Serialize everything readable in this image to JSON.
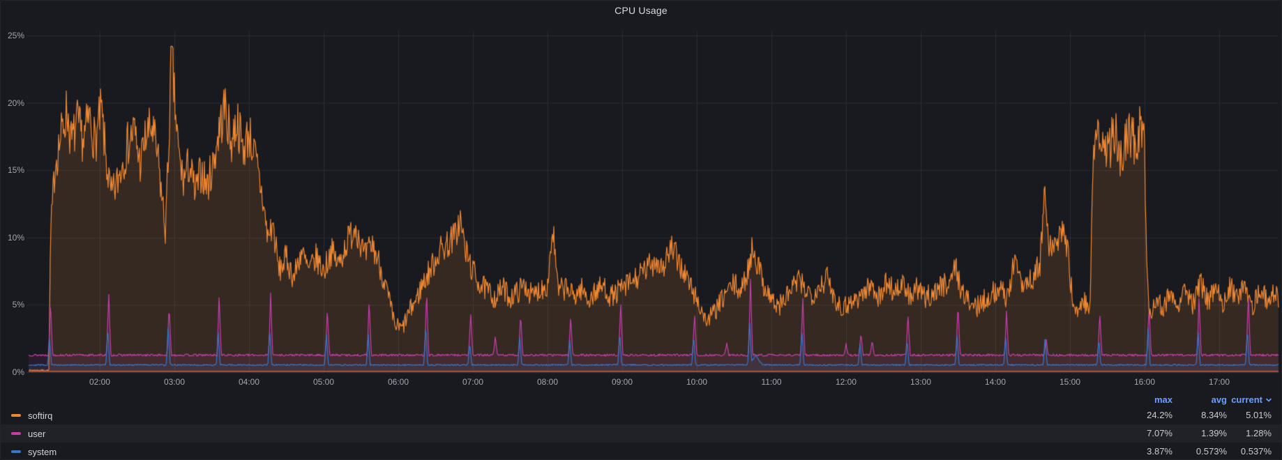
{
  "panel": {
    "title": "CPU Usage"
  },
  "colors": {
    "background": "#181A20",
    "grid": "#2C2E34",
    "tick_text": "#A2A6AE",
    "title_text": "#DADBDE",
    "legend_header": "#6E9FFF",
    "legend_text": "#D2D4D8",
    "legend_value_text": "#C9CBD2",
    "near_zero_line": "#C25E3A"
  },
  "chart_data": {
    "type": "line",
    "title": "CPU Usage",
    "grid": true,
    "x_axis": {
      "unit": "time_of_day",
      "tick_labels": [
        "02:00",
        "03:00",
        "04:00",
        "05:00",
        "06:00",
        "07:00",
        "08:00",
        "09:00",
        "10:00",
        "11:00",
        "12:00",
        "13:00",
        "14:00",
        "15:00",
        "16:00",
        "17:00"
      ],
      "tick_hours": [
        2,
        3,
        4,
        5,
        6,
        7,
        8,
        9,
        10,
        11,
        12,
        13,
        14,
        15,
        16,
        17
      ],
      "range_hours": [
        1.05,
        17.79
      ]
    },
    "y_axis": {
      "unit": "percent",
      "tick_labels": [
        "0%",
        "5%",
        "10%",
        "15%",
        "20%",
        "25%"
      ],
      "tick_values": [
        0,
        5,
        10,
        15,
        20,
        25
      ],
      "range": [
        0,
        25.6
      ]
    },
    "legend": {
      "position": "bottom-table",
      "columns": [
        "max",
        "avg",
        "current"
      ],
      "sort_column": "current",
      "sort_descending": true
    },
    "near_zero_line": {
      "value": 0.07,
      "color": "#C25E3A"
    },
    "series": [
      {
        "name": "softirq",
        "color": "#ED8733",
        "fill_opacity": 0.14,
        "stats": {
          "max": "24.2%",
          "avg": "8.34%",
          "current": "5.01%"
        },
        "noise_seed": 7,
        "max_value": 24.2,
        "envelope_points": [
          [
            1.05,
            0.15
          ],
          [
            1.32,
            0.15
          ],
          [
            1.34,
            9.8
          ],
          [
            1.4,
            15.5
          ],
          [
            1.48,
            17.5
          ],
          [
            1.56,
            19.5
          ],
          [
            1.62,
            17
          ],
          [
            1.7,
            18.5
          ],
          [
            1.78,
            17.2
          ],
          [
            1.86,
            19
          ],
          [
            1.94,
            17
          ],
          [
            2.02,
            19.5
          ],
          [
            2.08,
            16
          ],
          [
            2.15,
            13
          ],
          [
            2.22,
            13.8
          ],
          [
            2.3,
            15.5
          ],
          [
            2.38,
            17
          ],
          [
            2.46,
            18
          ],
          [
            2.54,
            15.5
          ],
          [
            2.62,
            17.5
          ],
          [
            2.7,
            18.2
          ],
          [
            2.78,
            15.8
          ],
          [
            2.88,
            10.5
          ],
          [
            2.92,
            16
          ],
          [
            2.96,
            24.2
          ],
          [
            3.0,
            20.3
          ],
          [
            3.06,
            16
          ],
          [
            3.12,
            14.2
          ],
          [
            3.2,
            15.5
          ],
          [
            3.28,
            13.2
          ],
          [
            3.36,
            15
          ],
          [
            3.44,
            13.8
          ],
          [
            3.52,
            15.5
          ],
          [
            3.6,
            18
          ],
          [
            3.68,
            19.8
          ],
          [
            3.76,
            17
          ],
          [
            3.84,
            18.8
          ],
          [
            3.92,
            16.5
          ],
          [
            4.0,
            17.8
          ],
          [
            4.08,
            16
          ],
          [
            4.18,
            13
          ],
          [
            4.25,
            10
          ],
          [
            4.32,
            11
          ],
          [
            4.4,
            7.5
          ],
          [
            4.5,
            8.5
          ],
          [
            4.6,
            7
          ],
          [
            4.7,
            9
          ],
          [
            4.8,
            7.5
          ],
          [
            4.9,
            8.5
          ],
          [
            5.0,
            7.5
          ],
          [
            5.1,
            9
          ],
          [
            5.2,
            8
          ],
          [
            5.3,
            9.5
          ],
          [
            5.43,
            11
          ],
          [
            5.55,
            8.5
          ],
          [
            5.65,
            9.5
          ],
          [
            5.75,
            8
          ],
          [
            5.85,
            6
          ],
          [
            5.95,
            3.5
          ],
          [
            6.05,
            3.2
          ],
          [
            6.15,
            4.5
          ],
          [
            6.25,
            5.5
          ],
          [
            6.32,
            6.5
          ],
          [
            6.42,
            7.5
          ],
          [
            6.55,
            9
          ],
          [
            6.65,
            9.5
          ],
          [
            6.75,
            10
          ],
          [
            6.83,
            11.3
          ],
          [
            6.9,
            9
          ],
          [
            7.0,
            7.5
          ],
          [
            7.1,
            6.5
          ],
          [
            7.2,
            6
          ],
          [
            7.3,
            5.5
          ],
          [
            7.4,
            6.3
          ],
          [
            7.5,
            5.5
          ],
          [
            7.6,
            6
          ],
          [
            7.7,
            6.5
          ],
          [
            7.8,
            5.6
          ],
          [
            7.9,
            6.2
          ],
          [
            8.0,
            6.5
          ],
          [
            8.07,
            10.8
          ],
          [
            8.14,
            6
          ],
          [
            8.25,
            6.3
          ],
          [
            8.35,
            5.6
          ],
          [
            8.45,
            6.2
          ],
          [
            8.55,
            5.4
          ],
          [
            8.65,
            6
          ],
          [
            8.75,
            6.4
          ],
          [
            8.85,
            5.6
          ],
          [
            8.95,
            6
          ],
          [
            9.05,
            6.4
          ],
          [
            9.15,
            6.8
          ],
          [
            9.25,
            7.2
          ],
          [
            9.35,
            7.8
          ],
          [
            9.45,
            8.4
          ],
          [
            9.55,
            7.8
          ],
          [
            9.65,
            9.2
          ],
          [
            9.75,
            8.3
          ],
          [
            9.85,
            7.2
          ],
          [
            9.95,
            6
          ],
          [
            10.05,
            4.8
          ],
          [
            10.12,
            3.8
          ],
          [
            10.2,
            4.2
          ],
          [
            10.3,
            5
          ],
          [
            10.4,
            6
          ],
          [
            10.5,
            6.5
          ],
          [
            10.6,
            6
          ],
          [
            10.68,
            7.5
          ],
          [
            10.75,
            9.3
          ],
          [
            10.82,
            8
          ],
          [
            10.9,
            6.5
          ],
          [
            11.0,
            5.5
          ],
          [
            11.08,
            4.8
          ],
          [
            11.15,
            5.2
          ],
          [
            11.25,
            6
          ],
          [
            11.35,
            6.8
          ],
          [
            11.45,
            6.2
          ],
          [
            11.55,
            5.8
          ],
          [
            11.65,
            6.5
          ],
          [
            11.75,
            7
          ],
          [
            11.85,
            5.5
          ],
          [
            11.95,
            4.8
          ],
          [
            12.05,
            5.2
          ],
          [
            12.15,
            5.5
          ],
          [
            12.25,
            6
          ],
          [
            12.35,
            6.5
          ],
          [
            12.45,
            5.5
          ],
          [
            12.55,
            6.8
          ],
          [
            12.64,
            6
          ],
          [
            12.75,
            6.5
          ],
          [
            12.85,
            5.6
          ],
          [
            12.95,
            6.2
          ],
          [
            13.05,
            5.5
          ],
          [
            13.15,
            5.8
          ],
          [
            13.25,
            6.3
          ],
          [
            13.38,
            6.8
          ],
          [
            13.47,
            7.8
          ],
          [
            13.55,
            6
          ],
          [
            13.65,
            5.2
          ],
          [
            13.75,
            4.8
          ],
          [
            13.85,
            5.4
          ],
          [
            13.95,
            5.8
          ],
          [
            14.05,
            6.2
          ],
          [
            14.15,
            5.6
          ],
          [
            14.27,
            8.3
          ],
          [
            14.38,
            6.5
          ],
          [
            14.5,
            7
          ],
          [
            14.6,
            8
          ],
          [
            14.66,
            13.5
          ],
          [
            14.72,
            9
          ],
          [
            14.8,
            9.5
          ],
          [
            14.9,
            10.5
          ],
          [
            14.97,
            9
          ],
          [
            15.03,
            5.5
          ],
          [
            15.1,
            4.6
          ],
          [
            15.18,
            5.2
          ],
          [
            15.27,
            5
          ],
          [
            15.31,
            16
          ],
          [
            15.4,
            17.5
          ],
          [
            15.5,
            16.2
          ],
          [
            15.6,
            17.8
          ],
          [
            15.68,
            16
          ],
          [
            15.78,
            18
          ],
          [
            15.88,
            16.8
          ],
          [
            15.96,
            18.5
          ],
          [
            16.0,
            17.5
          ],
          [
            16.02,
            10
          ],
          [
            16.06,
            4.2
          ],
          [
            16.15,
            5.5
          ],
          [
            16.25,
            4.8
          ],
          [
            16.35,
            6
          ],
          [
            16.45,
            5.2
          ],
          [
            16.55,
            6.3
          ],
          [
            16.65,
            5
          ],
          [
            16.75,
            6.5
          ],
          [
            16.85,
            5.4
          ],
          [
            16.95,
            6
          ],
          [
            17.05,
            5.2
          ],
          [
            17.15,
            6.4
          ],
          [
            17.25,
            5.4
          ],
          [
            17.35,
            6.6
          ],
          [
            17.45,
            5
          ],
          [
            17.55,
            6
          ],
          [
            17.65,
            5.4
          ],
          [
            17.72,
            6.2
          ],
          [
            17.79,
            5.2
          ]
        ]
      },
      {
        "name": "user",
        "color": "#C23FA8",
        "fill_opacity": 0.1,
        "stats": {
          "max": "7.07%",
          "avg": "1.39%",
          "current": "1.28%"
        },
        "noise_seed": 13,
        "max_value": 7.07,
        "baseline": 1.27,
        "baseline_noise": 0.16,
        "spike_width_hours": 0.03,
        "spikes": [
          [
            1.34,
            5.3
          ],
          [
            2.12,
            6.0
          ],
          [
            2.93,
            5.0
          ],
          [
            3.6,
            5.8
          ],
          [
            4.29,
            5.9
          ],
          [
            5.05,
            4.8
          ],
          [
            5.61,
            5.5
          ],
          [
            6.38,
            6.2
          ],
          [
            6.97,
            4.5
          ],
          [
            7.3,
            2.6
          ],
          [
            7.64,
            4.4
          ],
          [
            8.31,
            4.2
          ],
          [
            8.98,
            5.2
          ],
          [
            9.97,
            4.5
          ],
          [
            10.4,
            2.2
          ],
          [
            10.72,
            7.07
          ],
          [
            11.42,
            5.6
          ],
          [
            12.0,
            2.1
          ],
          [
            12.2,
            3.0
          ],
          [
            12.35,
            2.3
          ],
          [
            12.83,
            4.4
          ],
          [
            13.5,
            5.2
          ],
          [
            14.15,
            4.6
          ],
          [
            14.68,
            2.6
          ],
          [
            15.4,
            4.4
          ],
          [
            16.06,
            5.0
          ],
          [
            16.73,
            5.6
          ],
          [
            17.39,
            5.9
          ]
        ]
      },
      {
        "name": "system",
        "color": "#3876C4",
        "fill_opacity": 0.1,
        "stats": {
          "max": "3.87%",
          "avg": "0.573%",
          "current": "0.537%"
        },
        "noise_seed": 29,
        "max_value": 3.87,
        "baseline": 0.54,
        "baseline_noise": 0.1,
        "spike_width_hours": 0.028,
        "time_offset": -0.012,
        "spikes": [
          [
            1.34,
            2.6
          ],
          [
            2.12,
            3.4
          ],
          [
            2.93,
            3.6
          ],
          [
            3.6,
            3.0
          ],
          [
            4.29,
            3.2
          ],
          [
            5.05,
            2.9
          ],
          [
            5.61,
            2.8
          ],
          [
            6.38,
            3.6
          ],
          [
            6.97,
            2.2
          ],
          [
            7.64,
            2.8
          ],
          [
            8.31,
            2.4
          ],
          [
            8.98,
            3.0
          ],
          [
            9.97,
            2.8
          ],
          [
            10.72,
            3.87
          ],
          [
            10.8,
            1.25,
            0.1
          ],
          [
            11.42,
            3.2
          ],
          [
            12.2,
            2.2
          ],
          [
            12.83,
            2.5
          ],
          [
            13.5,
            2.9
          ],
          [
            14.15,
            2.7
          ],
          [
            14.68,
            2.9
          ],
          [
            15.4,
            2.5
          ],
          [
            16.06,
            3.4
          ],
          [
            16.73,
            3.1
          ],
          [
            17.39,
            3.3
          ]
        ]
      }
    ]
  }
}
